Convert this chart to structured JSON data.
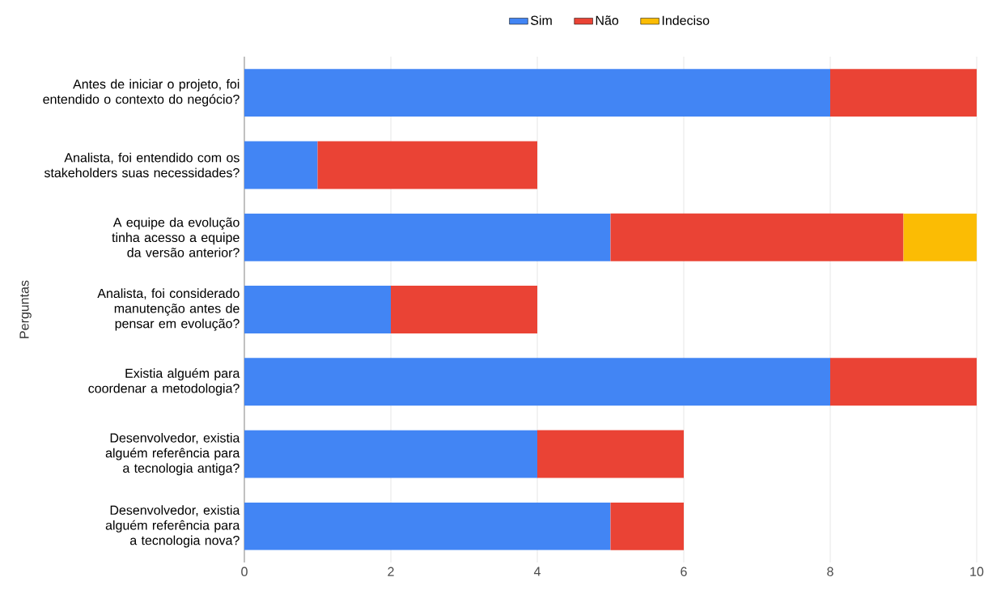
{
  "chart_data": {
    "type": "bar",
    "orientation": "horizontal",
    "stacked": true,
    "ylabel": "Perguntas",
    "categories": [
      "Antes de iniciar o projeto, foi entendido o contexto do negócio?",
      "Analista, foi entendido com os stakeholders suas necessidades?",
      "A equipe da evolução tinha acesso a equipe da versão anterior?",
      "Analista, foi considerado manutenção antes de pensar em evolução?",
      "Existia alguém para coordenar a metodologia?",
      "Desenvolvedor, existia alguém referência para a tecnologia antiga?",
      "Desenvolvedor, existia alguém referência para a tecnologia nova?"
    ],
    "series": [
      {
        "name": "Sim",
        "color": "#4285f4",
        "values": [
          8,
          1,
          5,
          2,
          8,
          4,
          5
        ]
      },
      {
        "name": "Não",
        "color": "#ea4335",
        "values": [
          2,
          3,
          4,
          2,
          2,
          2,
          1
        ]
      },
      {
        "name": "Indeciso",
        "color": "#fbbc04",
        "values": [
          null,
          null,
          1,
          null,
          null,
          null,
          null
        ]
      }
    ],
    "xlim": [
      0,
      10
    ],
    "xticks": [
      0,
      2,
      4,
      6,
      8,
      10
    ],
    "grid": "x",
    "legend": "top"
  }
}
